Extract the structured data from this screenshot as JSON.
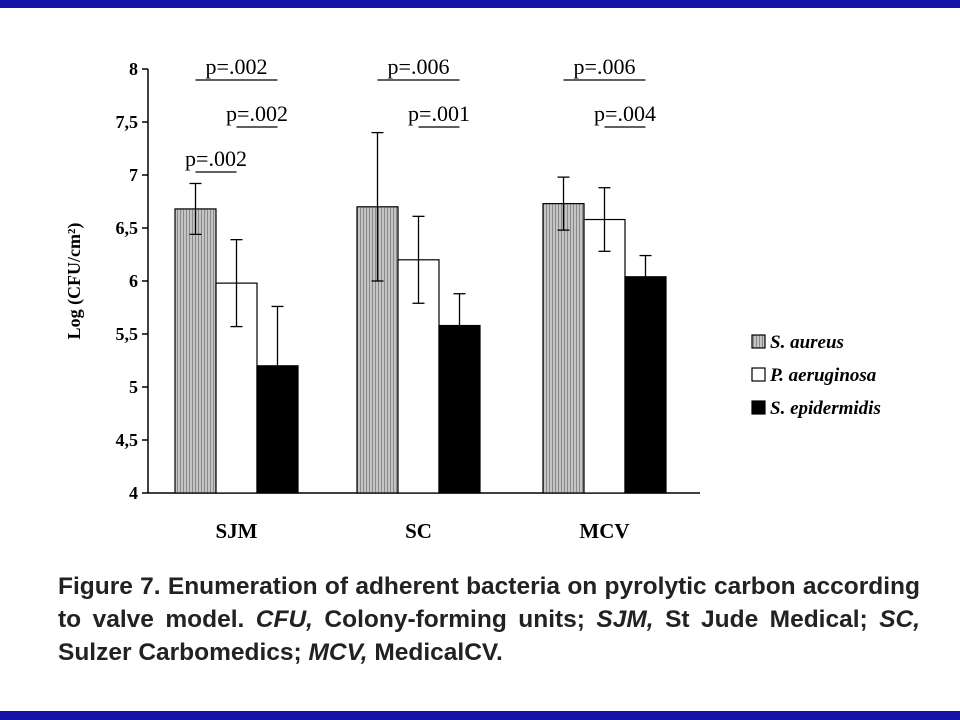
{
  "colors": {
    "frame": "#1414a8",
    "bar_outline": "#000000",
    "aureus_fill": "#b5b5b5",
    "aeruginosa_fill": "#ffffff",
    "epidermidis_fill": "#000000"
  },
  "chart_data": {
    "type": "bar",
    "title": "",
    "ylabel": "Log (CFU/cm²)",
    "xlabel": "",
    "ylim": [
      4,
      8
    ],
    "yticks": [
      "4",
      "4,5",
      "5",
      "5,5",
      "6",
      "6,5",
      "7",
      "7,5",
      "8"
    ],
    "categories": [
      "SJM",
      "SC",
      "MCV"
    ],
    "series": [
      {
        "name": "S. aureus",
        "pattern": "hatched-gray",
        "values": [
          6.68,
          6.7,
          6.73
        ],
        "error": [
          0.24,
          0.7,
          0.25
        ]
      },
      {
        "name": "P. aeruginosa",
        "pattern": "white",
        "values": [
          5.98,
          6.2,
          6.58
        ],
        "error": [
          0.41,
          0.41,
          0.3
        ]
      },
      {
        "name": "S. epidermidis",
        "pattern": "black",
        "values": [
          5.2,
          5.58,
          6.04
        ],
        "error": [
          0.56,
          0.3,
          0.2
        ]
      }
    ],
    "legend": "right",
    "grid": false,
    "annotations": [
      {
        "group": "SJM",
        "label": "p=.002",
        "between": [
          "S. aureus",
          "S. epidermidis"
        ],
        "level": 3
      },
      {
        "group": "SJM",
        "label": "p=.002",
        "between": [
          "P. aeruginosa",
          "S. epidermidis"
        ],
        "level": 2
      },
      {
        "group": "SJM",
        "label": "p=.002",
        "between": [
          "S. aureus",
          "P. aeruginosa"
        ],
        "level": 1
      },
      {
        "group": "SC",
        "label": "p=.006",
        "between": [
          "S. aureus",
          "S. epidermidis"
        ],
        "level": 3
      },
      {
        "group": "SC",
        "label": "p=.001",
        "between": [
          "P. aeruginosa",
          "S. epidermidis"
        ],
        "level": 2
      },
      {
        "group": "MCV",
        "label": "p=.006",
        "between": [
          "S. aureus",
          "S. epidermidis"
        ],
        "level": 3
      },
      {
        "group": "MCV",
        "label": "p=.004",
        "between": [
          "P. aeruginosa",
          "S. epidermidis"
        ],
        "level": 2
      }
    ]
  },
  "caption": {
    "figure_label": "Figure 7.",
    "text_1": " Enumeration of adherent bacteria on pyrolytic carbon according to valve model. ",
    "abbr_1": "CFU,",
    "text_2": " Colony-forming units; ",
    "abbr_2": "SJM,",
    "text_3": " St Jude Medical; ",
    "abbr_3": "SC,",
    "text_4": " Sulzer Carbomedics; ",
    "abbr_4": "MCV,",
    "text_5": " MedicalCV."
  }
}
